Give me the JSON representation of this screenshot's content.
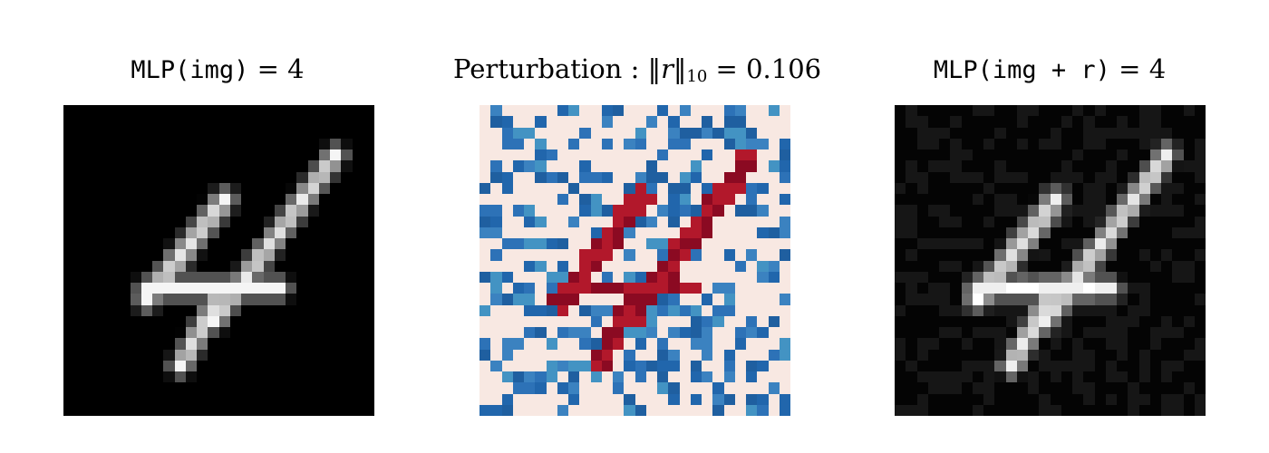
{
  "panels": {
    "original": {
      "label_fn": "MLP(img)",
      "label_eq": " = ",
      "label_val": "4"
    },
    "perturbation": {
      "label_prefix": "Perturbation : ",
      "label_norm": "‖r‖",
      "label_sub": "10",
      "label_eq": " = ",
      "label_val": "0.106"
    },
    "perturbed": {
      "label_fn": "MLP(img + r)",
      "label_eq": " = ",
      "label_val": "4"
    }
  },
  "colors": {
    "background_dark": "#000000",
    "perturbation_zero": "#f8e8e2",
    "perturbation_positive": "#8b0a22",
    "perturbation_negative": "#2166ac"
  },
  "image_grid_size": 28
}
